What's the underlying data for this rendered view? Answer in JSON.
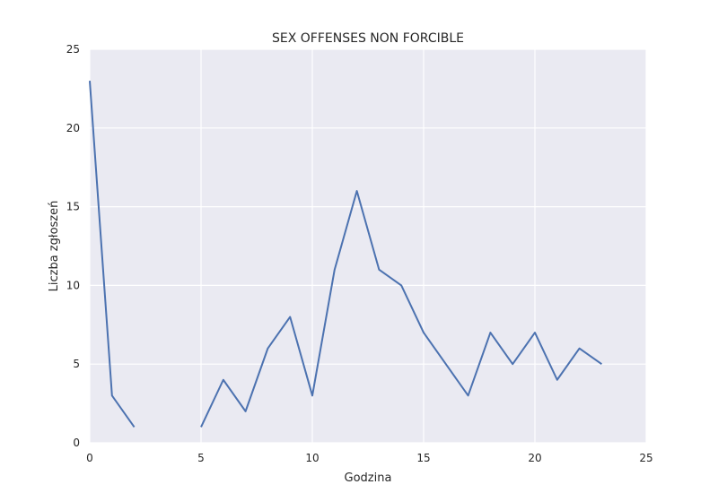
{
  "chart_data": {
    "type": "line",
    "title": "SEX OFFENSES NON FORCIBLE",
    "xlabel": "Godzina",
    "ylabel": "Liczba zgłoszeń",
    "xlim": [
      0,
      25
    ],
    "ylim": [
      0,
      25
    ],
    "xticks": [
      0,
      5,
      10,
      15,
      20,
      25
    ],
    "yticks": [
      0,
      5,
      10,
      15,
      20,
      25
    ],
    "grid": true,
    "colors": {
      "background": "#eaeaf2",
      "grid": "#ffffff",
      "line": "#4c72b0"
    },
    "series": [
      {
        "segments": [
          {
            "x": [
              0,
              1,
              2
            ],
            "y": [
              23,
              3,
              1
            ]
          },
          {
            "x": [
              5,
              6,
              7,
              8,
              9,
              10,
              11,
              12,
              13,
              14,
              15,
              16,
              17,
              18,
              19,
              20,
              21,
              22,
              23
            ],
            "y": [
              1,
              4,
              2,
              6,
              8,
              3,
              11,
              16,
              11,
              10,
              7,
              5,
              3,
              7,
              5,
              7,
              4,
              6,
              5
            ]
          }
        ]
      }
    ]
  }
}
